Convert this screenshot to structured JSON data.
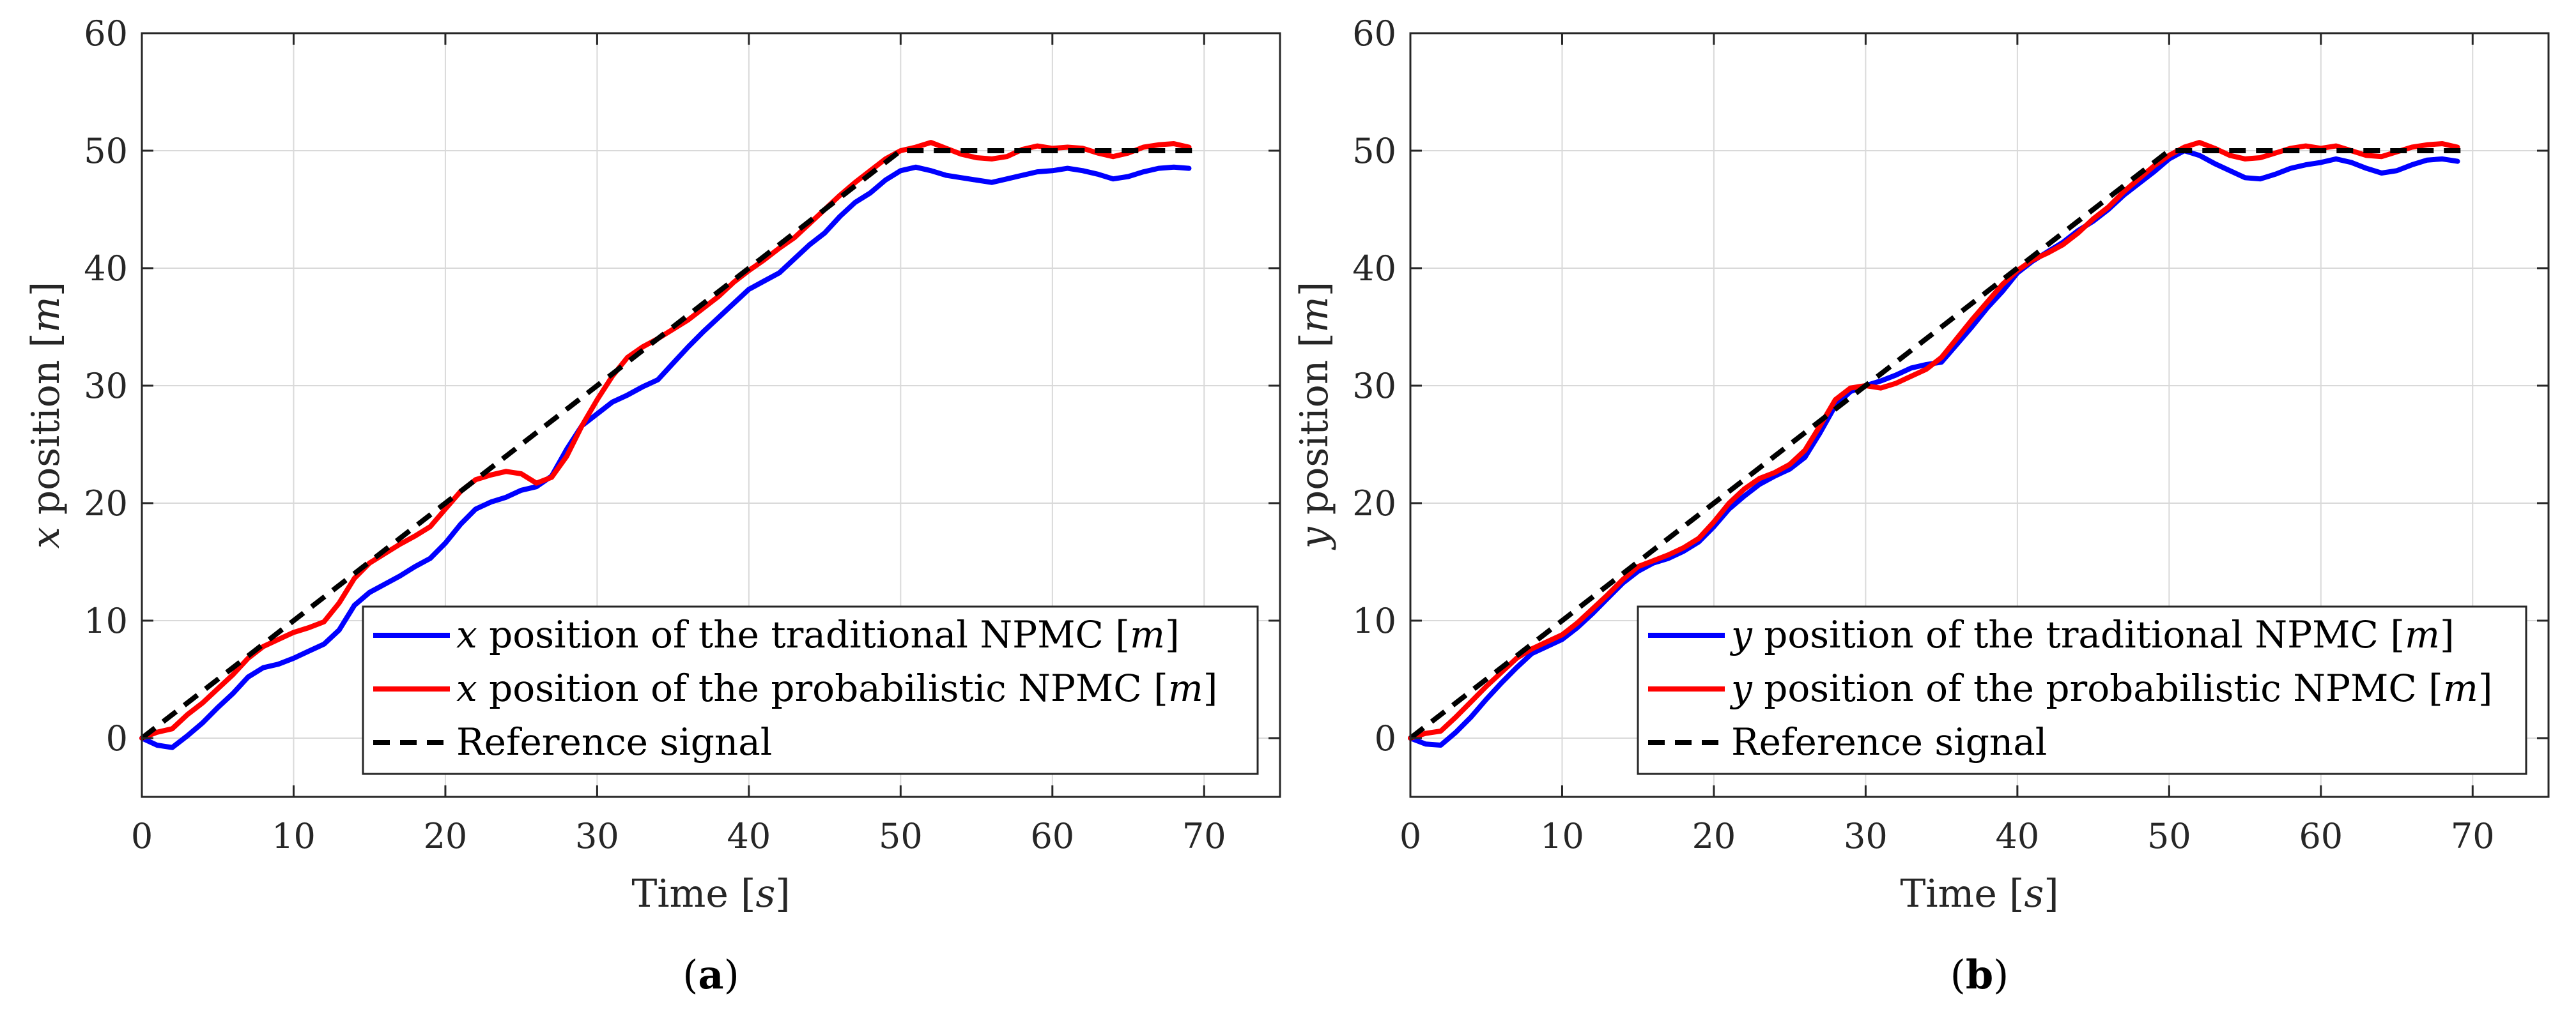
{
  "colors": {
    "traditional": "#0000ff",
    "probabilistic": "#ff0000",
    "reference": "#000000",
    "grid": "#d9d9d9",
    "axis": "#262626"
  },
  "chart_data": [
    {
      "type": "line",
      "caption": "(a)",
      "caption_letter": "a",
      "xlabel": "Time",
      "xlabel_unit": "s",
      "ylabel_var": "x",
      "ylabel_text": "position",
      "ylabel_unit": "m",
      "xlim": [
        0,
        75
      ],
      "ylim": [
        -5,
        60
      ],
      "xticks": [
        0,
        10,
        20,
        30,
        40,
        50,
        60,
        70
      ],
      "yticks": [
        0,
        10,
        20,
        30,
        40,
        50,
        60
      ],
      "grid": true,
      "legend_position": "bottom-right",
      "series": [
        {
          "name": "traditional",
          "var": "x",
          "label": "position of the traditional NPMC",
          "unit": "m",
          "style": "solid",
          "x": [
            0,
            1,
            2,
            3,
            4,
            5,
            6,
            7,
            8,
            9,
            10,
            11,
            12,
            13,
            14,
            15,
            16,
            17,
            18,
            19,
            20,
            21,
            22,
            23,
            24,
            25,
            26,
            27,
            28,
            29,
            30,
            31,
            32,
            33,
            34,
            35,
            36,
            37,
            38,
            39,
            40,
            41,
            42,
            43,
            44,
            45,
            46,
            47,
            48,
            49,
            50,
            51,
            52,
            53,
            54,
            55,
            56,
            57,
            58,
            59,
            60,
            61,
            62,
            63,
            64,
            65,
            66,
            67,
            68,
            69
          ],
          "y": [
            0,
            -0.6,
            -0.8,
            0.2,
            1.3,
            2.6,
            3.8,
            5.2,
            6.0,
            6.3,
            6.8,
            7.4,
            8.0,
            9.2,
            11.3,
            12.4,
            13.1,
            13.8,
            14.6,
            15.3,
            16.6,
            18.2,
            19.5,
            20.1,
            20.5,
            21.1,
            21.4,
            22.3,
            24.6,
            26.6,
            27.6,
            28.6,
            29.2,
            29.9,
            30.5,
            31.9,
            33.3,
            34.6,
            35.8,
            37.0,
            38.2,
            38.9,
            39.6,
            40.8,
            42.0,
            43.0,
            44.4,
            45.6,
            46.4,
            47.5,
            48.3,
            48.6,
            48.3,
            47.9,
            47.7,
            47.5,
            47.3,
            47.6,
            47.9,
            48.2,
            48.3,
            48.5,
            48.3,
            48.0,
            47.6,
            47.8,
            48.2,
            48.5,
            48.6,
            48.5
          ]
        },
        {
          "name": "probabilistic",
          "var": "x",
          "label": "position of the probabilistic NPMC",
          "unit": "m",
          "style": "solid",
          "x": [
            0,
            1,
            2,
            3,
            4,
            5,
            6,
            7,
            8,
            9,
            10,
            11,
            12,
            13,
            14,
            15,
            16,
            17,
            18,
            19,
            20,
            21,
            22,
            23,
            24,
            25,
            26,
            27,
            28,
            29,
            30,
            31,
            32,
            33,
            34,
            35,
            36,
            37,
            38,
            39,
            40,
            41,
            42,
            43,
            44,
            45,
            46,
            47,
            48,
            49,
            50,
            51,
            52,
            53,
            54,
            55,
            56,
            57,
            58,
            59,
            60,
            61,
            62,
            63,
            64,
            65,
            66,
            67,
            68,
            69
          ],
          "y": [
            0,
            0.5,
            0.8,
            2.0,
            3.0,
            4.2,
            5.4,
            6.8,
            7.8,
            8.4,
            9.0,
            9.4,
            9.9,
            11.5,
            13.6,
            14.9,
            15.7,
            16.5,
            17.2,
            18.0,
            19.5,
            21.0,
            22.0,
            22.4,
            22.7,
            22.5,
            21.7,
            22.2,
            24.0,
            26.6,
            28.8,
            30.8,
            32.4,
            33.3,
            34.0,
            34.8,
            35.6,
            36.6,
            37.6,
            38.8,
            39.8,
            40.7,
            41.7,
            42.6,
            43.8,
            45.0,
            46.2,
            47.3,
            48.3,
            49.3,
            50.0,
            50.3,
            50.7,
            50.2,
            49.7,
            49.4,
            49.3,
            49.5,
            50.1,
            50.4,
            50.2,
            50.3,
            50.2,
            49.8,
            49.5,
            49.8,
            50.3,
            50.5,
            50.6,
            50.3
          ]
        },
        {
          "name": "reference",
          "label": "Reference signal",
          "style": "dashed",
          "x": [
            0,
            50,
            69.3
          ],
          "y": [
            0,
            50,
            50
          ]
        }
      ]
    },
    {
      "type": "line",
      "caption": "(b)",
      "caption_letter": "b",
      "xlabel": "Time",
      "xlabel_unit": "s",
      "ylabel_var": "y",
      "ylabel_text": "position",
      "ylabel_unit": "m",
      "xlim": [
        0,
        75
      ],
      "ylim": [
        -5,
        60
      ],
      "xticks": [
        0,
        10,
        20,
        30,
        40,
        50,
        60,
        70
      ],
      "yticks": [
        0,
        10,
        20,
        30,
        40,
        50,
        60
      ],
      "grid": true,
      "legend_position": "bottom-right",
      "series": [
        {
          "name": "traditional",
          "var": "y",
          "label": "position of the traditional NPMC",
          "unit": "m",
          "style": "solid",
          "x": [
            0,
            1,
            2,
            3,
            4,
            5,
            6,
            7,
            8,
            9,
            10,
            11,
            12,
            13,
            14,
            15,
            16,
            17,
            18,
            19,
            20,
            21,
            22,
            23,
            24,
            25,
            26,
            27,
            28,
            29,
            30,
            31,
            32,
            33,
            34,
            35,
            36,
            37,
            38,
            39,
            40,
            41,
            42,
            43,
            44,
            45,
            46,
            47,
            48,
            49,
            50,
            51,
            52,
            53,
            54,
            55,
            56,
            57,
            58,
            59,
            60,
            61,
            62,
            63,
            64,
            65,
            66,
            67,
            68,
            69
          ],
          "y": [
            0,
            -0.5,
            -0.6,
            0.5,
            1.8,
            3.3,
            4.7,
            6.0,
            7.2,
            7.8,
            8.4,
            9.4,
            10.6,
            11.9,
            13.2,
            14.2,
            14.9,
            15.3,
            15.9,
            16.7,
            18.0,
            19.5,
            20.6,
            21.6,
            22.3,
            22.9,
            23.9,
            26.0,
            28.3,
            29.5,
            30.0,
            30.4,
            30.9,
            31.5,
            31.8,
            32.0,
            33.5,
            35.0,
            36.6,
            38.0,
            39.6,
            40.6,
            41.4,
            42.2,
            43.2,
            44.0,
            45.0,
            46.2,
            47.2,
            48.2,
            49.3,
            50.0,
            49.6,
            48.9,
            48.3,
            47.7,
            47.6,
            48.0,
            48.5,
            48.8,
            49.0,
            49.3,
            49.0,
            48.5,
            48.1,
            48.3,
            48.8,
            49.2,
            49.3,
            49.1
          ]
        },
        {
          "name": "probabilistic",
          "var": "y",
          "label": "position of the probabilistic NPMC",
          "unit": "m",
          "style": "solid",
          "x": [
            0,
            1,
            2,
            3,
            4,
            5,
            6,
            7,
            8,
            9,
            10,
            11,
            12,
            13,
            14,
            15,
            16,
            17,
            18,
            19,
            20,
            21,
            22,
            23,
            24,
            25,
            26,
            27,
            28,
            29,
            30,
            31,
            32,
            33,
            34,
            35,
            36,
            37,
            38,
            39,
            40,
            41,
            42,
            43,
            44,
            45,
            46,
            47,
            48,
            49,
            50,
            51,
            52,
            53,
            54,
            55,
            56,
            57,
            58,
            59,
            60,
            61,
            62,
            63,
            64,
            65,
            66,
            67,
            68,
            69
          ],
          "y": [
            0,
            0.4,
            0.6,
            1.8,
            3.1,
            4.4,
            5.6,
            6.8,
            7.6,
            8.2,
            8.8,
            9.8,
            11.0,
            12.2,
            13.5,
            14.6,
            15.1,
            15.6,
            16.2,
            17.0,
            18.4,
            20.0,
            21.2,
            22.1,
            22.6,
            23.3,
            24.5,
            26.6,
            28.8,
            29.8,
            30.0,
            29.8,
            30.2,
            30.8,
            31.4,
            32.4,
            34.0,
            35.6,
            37.1,
            38.6,
            39.8,
            40.7,
            41.3,
            42.0,
            43.0,
            44.2,
            45.2,
            46.5,
            47.6,
            48.7,
            49.6,
            50.3,
            50.7,
            50.2,
            49.6,
            49.3,
            49.4,
            49.8,
            50.2,
            50.4,
            50.2,
            50.4,
            50.0,
            49.6,
            49.5,
            49.9,
            50.3,
            50.5,
            50.6,
            50.3
          ]
        },
        {
          "name": "reference",
          "label": "Reference signal",
          "style": "dashed",
          "x": [
            0,
            50,
            69.3
          ],
          "y": [
            0,
            50,
            50
          ]
        }
      ]
    }
  ]
}
